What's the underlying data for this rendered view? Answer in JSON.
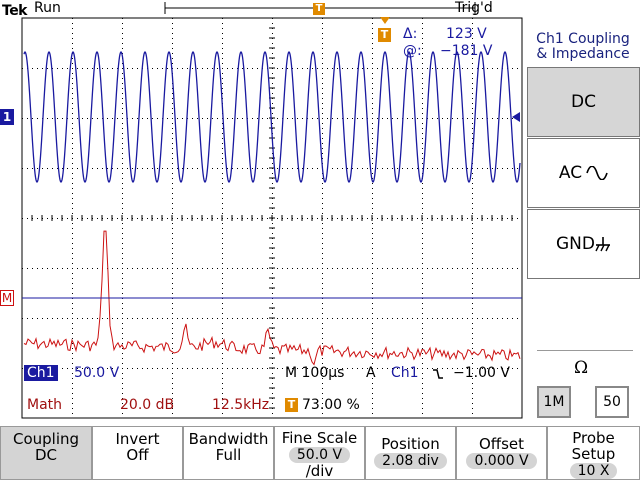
{
  "top": {
    "brand": "Tek",
    "run_state": "Run",
    "trigger_status": "Trig'd",
    "trigger_marker": "T"
  },
  "cursor_readout": {
    "delta_symbol": "Δ:",
    "delta_value": "123 V",
    "at_symbol": "@:",
    "at_value": "−181 V"
  },
  "markers": {
    "ch1": "1",
    "math": "M"
  },
  "right_panel": {
    "title_line1": "Ch1 Coupling",
    "title_line2": "& Impedance",
    "options": [
      {
        "label": "DC",
        "selected": true
      },
      {
        "label": "AC",
        "selected": false
      },
      {
        "label": "GND",
        "selected": false
      }
    ],
    "impedance_symbol": "Ω",
    "impedance_options": [
      {
        "label": "1M",
        "selected": true
      },
      {
        "label": "50",
        "selected": false
      }
    ]
  },
  "readouts": {
    "ch1_label": "Ch1",
    "ch1_scale": "50.0 V",
    "timebase": "M 100µs",
    "trigger_mode": "A",
    "trigger_source": "Ch1",
    "trigger_level": "−1.00 V",
    "math_label": "Math",
    "math_scale": "20.0 dB",
    "math_freq": "12.5kHz",
    "trigger_pos_marker": "T",
    "trigger_pos": "73.00 %"
  },
  "bottom_menu": [
    {
      "label": "Coupling",
      "value": "DC",
      "selected": true
    },
    {
      "label": "Invert",
      "value": "Off",
      "selected": false
    },
    {
      "label": "Bandwidth",
      "value": "Full",
      "selected": false
    },
    {
      "label": "Fine Scale",
      "value": "50.0 V",
      "value2": "/div",
      "selected": false
    },
    {
      "label": "Position",
      "value": "2.08 div",
      "selected": false
    },
    {
      "label": "Offset",
      "value": "0.000 V",
      "selected": false
    },
    {
      "label": "Probe Setup",
      "value": "10 X",
      "selected": false
    }
  ],
  "colors": {
    "ch1": "#1a1aa0",
    "math": "#cc1111",
    "trigger": "#e08a00",
    "grid": "#000000"
  }
}
